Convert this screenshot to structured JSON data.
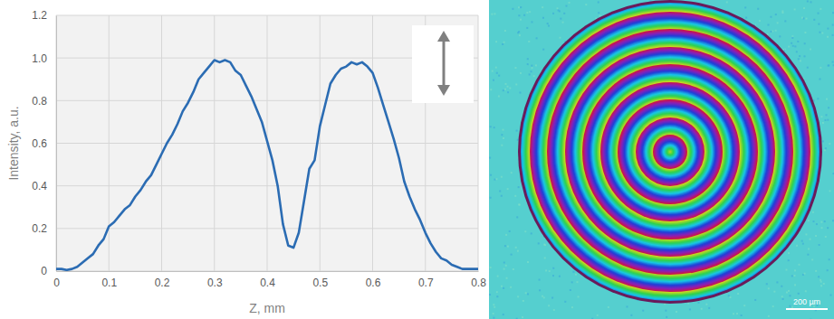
{
  "chart_data": {
    "type": "line",
    "x_label": "Z, mm",
    "y_label": "Intensity, a.u.",
    "color": "#2b6cb3",
    "grid": true,
    "xlim": [
      0,
      0.8
    ],
    "xticks": [
      0,
      0.1,
      0.2,
      0.3,
      0.4,
      0.5,
      0.6,
      0.7,
      0.8
    ],
    "ylim": [
      0,
      1.2
    ],
    "yticks": [
      0,
      0.2,
      0.4,
      0.6,
      0.8,
      {
        "value": 1,
        "label": "1.0"
      },
      1.2
    ],
    "x": [
      0,
      0.01,
      0.02,
      0.03,
      0.04,
      0.05,
      0.06,
      0.07,
      0.08,
      0.09,
      0.1,
      0.11,
      0.12,
      0.13,
      0.14,
      0.15,
      0.16,
      0.17,
      0.18,
      0.19,
      0.2,
      0.21,
      0.22,
      0.23,
      0.24,
      0.25,
      0.26,
      0.27,
      0.28,
      0.29,
      0.3,
      0.31,
      0.32,
      0.33,
      0.34,
      0.35,
      0.36,
      0.37,
      0.38,
      0.39,
      0.4,
      0.41,
      0.42,
      0.43,
      0.44,
      0.45,
      0.46,
      0.47,
      0.48,
      0.49,
      0.5,
      0.51,
      0.52,
      0.53,
      0.54,
      0.55,
      0.56,
      0.57,
      0.58,
      0.59,
      0.6,
      0.61,
      0.62,
      0.63,
      0.64,
      0.65,
      0.66,
      0.67,
      0.68,
      0.69,
      0.7,
      0.71,
      0.72,
      0.73,
      0.74,
      0.75,
      0.76,
      0.77,
      0.78,
      0.79,
      0.8
    ],
    "values": [
      0.01,
      0.01,
      0.005,
      0.01,
      0.02,
      0.04,
      0.06,
      0.08,
      0.12,
      0.15,
      0.21,
      0.23,
      0.26,
      0.29,
      0.31,
      0.35,
      0.38,
      0.42,
      0.45,
      0.5,
      0.55,
      0.6,
      0.64,
      0.69,
      0.75,
      0.79,
      0.84,
      0.9,
      0.93,
      0.96,
      0.99,
      0.98,
      0.99,
      0.98,
      0.94,
      0.92,
      0.87,
      0.82,
      0.76,
      0.7,
      0.61,
      0.52,
      0.4,
      0.22,
      0.12,
      0.11,
      0.18,
      0.33,
      0.48,
      0.52,
      0.68,
      0.78,
      0.88,
      0.92,
      0.95,
      0.96,
      0.98,
      0.97,
      0.98,
      0.96,
      0.93,
      0.86,
      0.78,
      0.7,
      0.62,
      0.53,
      0.42,
      0.35,
      0.29,
      0.24,
      0.18,
      0.13,
      0.09,
      0.06,
      0.05,
      0.03,
      0.02,
      0.01,
      0.01,
      0.01,
      0.01
    ]
  },
  "image": {
    "scale_bar_label": "200 µm"
  }
}
